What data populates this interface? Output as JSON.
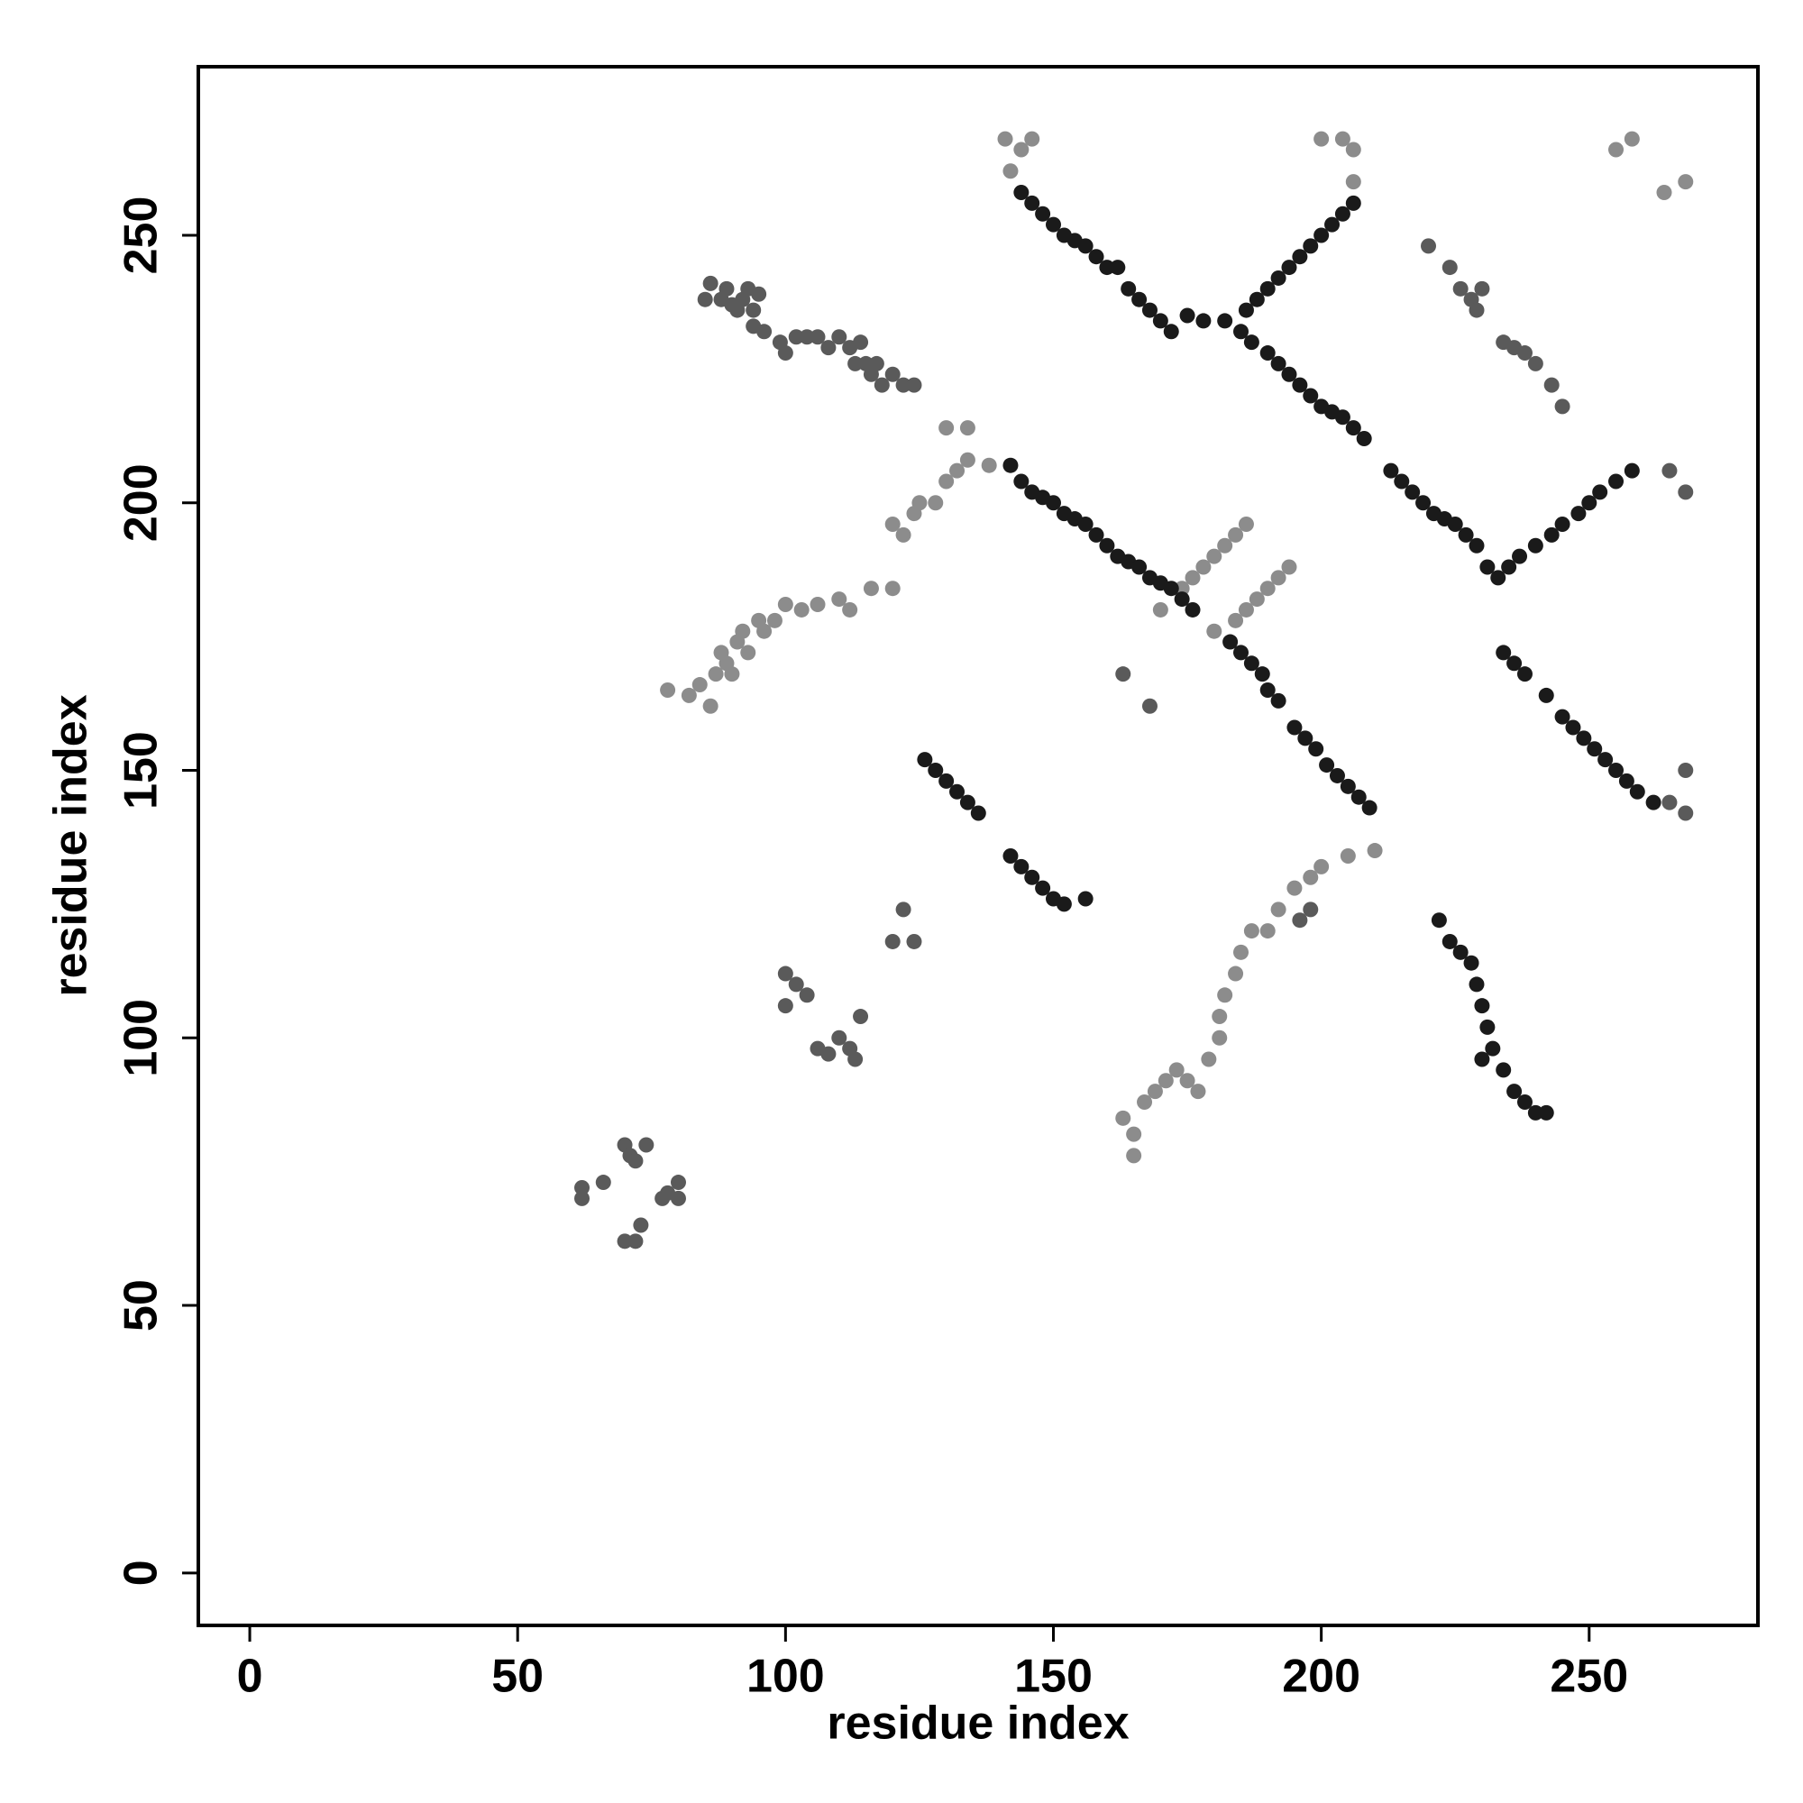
{
  "chart_data": {
    "type": "scatter",
    "xlabel": "residue index",
    "ylabel": "residue index",
    "xlim": [
      -9.6,
      281.5
    ],
    "ylim": [
      -9.8,
      281.5
    ],
    "xticks": [
      0,
      50,
      100,
      150,
      200,
      250
    ],
    "yticks": [
      0,
      50,
      100,
      150,
      200,
      250
    ],
    "series": [
      {
        "color": "#8c8c8c",
        "x": [
          78,
          82,
          84,
          86,
          87,
          88,
          89,
          90,
          91,
          92,
          93,
          95,
          96,
          98,
          100,
          103,
          106,
          110,
          112,
          116,
          120,
          120,
          122,
          124,
          125,
          128,
          130,
          132,
          134,
          130,
          134,
          138,
          255,
          258,
          264,
          268,
          163,
          165,
          165,
          167,
          169,
          171,
          173,
          175,
          177,
          179,
          181,
          181,
          182,
          184,
          185,
          187,
          190,
          192,
          195,
          198,
          200,
          205,
          210,
          170,
          174,
          176,
          178,
          180,
          182,
          184,
          186,
          180,
          184,
          186,
          188,
          190,
          192,
          194,
          141,
          142,
          144,
          146,
          200,
          204,
          206,
          206
        ],
        "values": [
          165,
          164,
          166,
          162,
          168,
          172,
          170,
          168,
          174,
          176,
          172,
          178,
          176,
          178,
          181,
          180,
          181,
          182,
          180,
          184,
          184,
          196,
          194,
          198,
          200,
          200,
          204,
          206,
          208,
          214,
          214,
          207,
          266,
          268,
          258,
          260,
          85,
          82,
          78,
          88,
          90,
          92,
          94,
          92,
          90,
          96,
          100,
          104,
          108,
          112,
          116,
          120,
          120,
          124,
          128,
          130,
          132,
          134,
          135,
          180,
          184,
          186,
          188,
          190,
          192,
          194,
          196,
          176,
          178,
          180,
          182,
          184,
          186,
          188,
          268,
          262,
          266,
          268,
          268,
          268,
          266,
          260
        ]
      },
      {
        "color": "#5a5a5a",
        "x": [
          62,
          62,
          66,
          70,
          71,
          72,
          74,
          70,
          72,
          73,
          77,
          78,
          80,
          80,
          85,
          86,
          88,
          89,
          90,
          91,
          92,
          93,
          94,
          95,
          94,
          96,
          99,
          100,
          102,
          104,
          106,
          108,
          110,
          112,
          113,
          114,
          115,
          116,
          117,
          118,
          120,
          122,
          124,
          220,
          224,
          226,
          228,
          229,
          230,
          234,
          236,
          238,
          240,
          243,
          245,
          100,
          102,
          104,
          100,
          106,
          108,
          110,
          112,
          113,
          114,
          122,
          120,
          124,
          163,
          168,
          196,
          198,
          265,
          268,
          268,
          265,
          268
        ],
        "values": [
          72,
          70,
          73,
          80,
          78,
          77,
          80,
          62,
          62,
          65,
          70,
          71,
          73,
          70,
          238,
          241,
          238,
          240,
          237,
          236,
          238,
          240,
          236,
          239,
          233,
          232,
          230,
          228,
          231,
          231,
          231,
          229,
          231,
          229,
          226,
          230,
          226,
          224,
          226,
          222,
          224,
          222,
          222,
          248,
          244,
          240,
          238,
          236,
          240,
          230,
          229,
          228,
          226,
          222,
          218,
          112,
          110,
          108,
          106,
          98,
          97,
          100,
          98,
          96,
          104,
          124,
          118,
          118,
          168,
          162,
          122,
          124,
          206,
          202,
          150,
          144,
          142
        ]
      },
      {
        "color": "#1a1a1a",
        "x": [
          142,
          144,
          146,
          148,
          150,
          152,
          154,
          156,
          158,
          160,
          162,
          164,
          166,
          168,
          170,
          172,
          174,
          176,
          183,
          185,
          187,
          189,
          190,
          192,
          195,
          197,
          199,
          201,
          203,
          205,
          207,
          209,
          144,
          146,
          148,
          150,
          152,
          154,
          156,
          158,
          160,
          162,
          164,
          166,
          168,
          170,
          172,
          175,
          178,
          182,
          185,
          187,
          190,
          192,
          194,
          196,
          198,
          200,
          202,
          204,
          206,
          208,
          186,
          188,
          190,
          192,
          194,
          196,
          198,
          200,
          202,
          204,
          206,
          213,
          215,
          217,
          219,
          221,
          223,
          225,
          227,
          229,
          231,
          233,
          235,
          237,
          240,
          243,
          245,
          248,
          250,
          252,
          255,
          258,
          234,
          236,
          238,
          242,
          245,
          247,
          249,
          251,
          253,
          255,
          257,
          259,
          262,
          126,
          128,
          130,
          132,
          134,
          136,
          142,
          144,
          146,
          148,
          150,
          152,
          156,
          222,
          224,
          226,
          228,
          229,
          230,
          231,
          232,
          230,
          234,
          236,
          238,
          240,
          242
        ],
        "values": [
          207,
          204,
          202,
          201,
          200,
          198,
          197,
          196,
          194,
          192,
          190,
          189,
          188,
          186,
          185,
          184,
          182,
          180,
          174,
          172,
          170,
          168,
          165,
          163,
          158,
          156,
          154,
          151,
          149,
          147,
          145,
          143,
          258,
          256,
          254,
          252,
          250,
          249,
          248,
          246,
          244,
          244,
          240,
          238,
          236,
          234,
          232,
          235,
          234,
          234,
          232,
          230,
          228,
          226,
          224,
          222,
          220,
          218,
          217,
          216,
          214,
          212,
          236,
          238,
          240,
          242,
          244,
          246,
          248,
          250,
          252,
          254,
          256,
          206,
          204,
          202,
          200,
          198,
          197,
          196,
          194,
          192,
          188,
          186,
          188,
          190,
          192,
          194,
          196,
          198,
          200,
          202,
          204,
          206,
          172,
          170,
          168,
          164,
          160,
          158,
          156,
          154,
          152,
          150,
          148,
          146,
          144,
          152,
          150,
          148,
          146,
          144,
          142,
          134,
          132,
          130,
          128,
          126,
          125,
          126,
          122,
          118,
          116,
          114,
          110,
          106,
          102,
          98,
          96,
          94,
          90,
          88,
          86,
          86
        ]
      }
    ]
  }
}
